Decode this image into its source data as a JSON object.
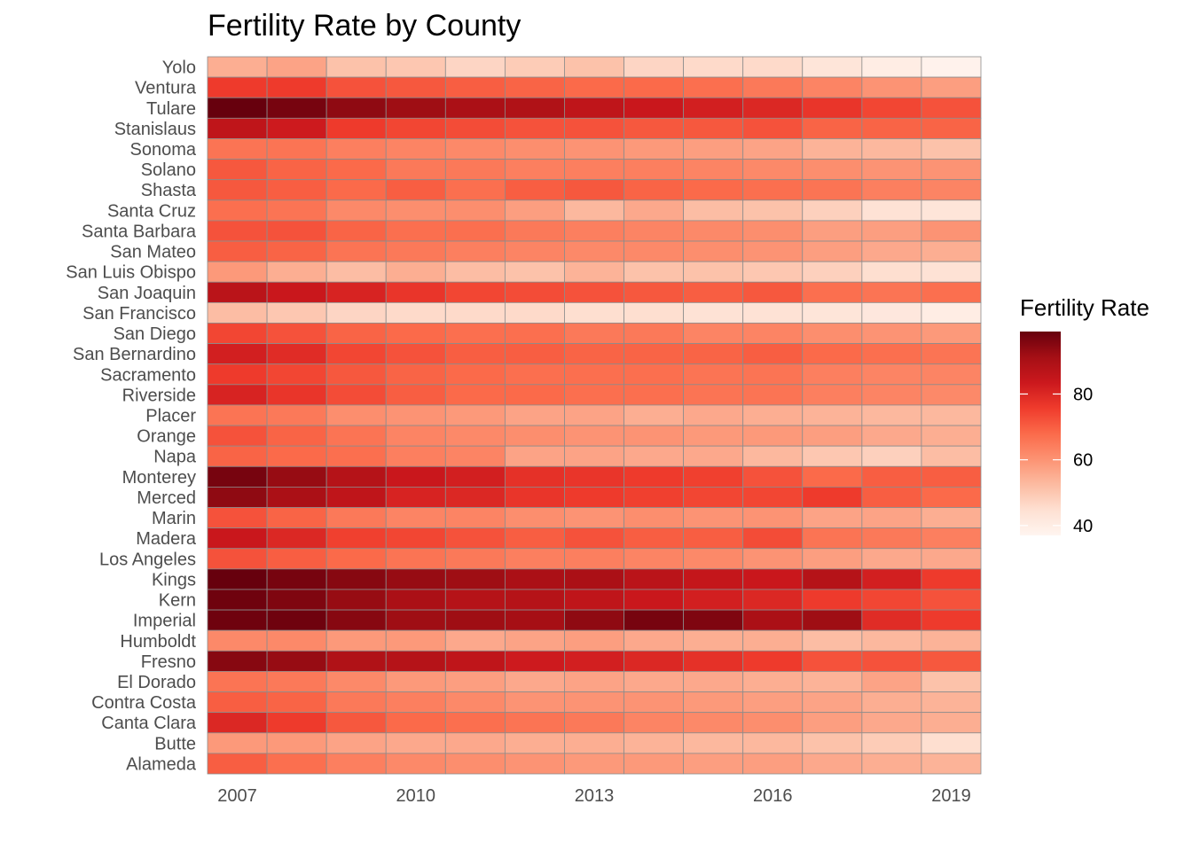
{
  "chart_data": {
    "type": "heatmap",
    "title": "Fertility Rate by County",
    "xlabel": "",
    "ylabel": "",
    "legend_title": "Fertility Rate",
    "legend_position": "right",
    "legend_ticks": [
      40,
      60,
      80
    ],
    "color_scale": {
      "min": 37,
      "max": 99,
      "low_color": "#fff5f0",
      "high_color": "#67000d"
    },
    "x": [
      2007,
      2008,
      2009,
      2010,
      2011,
      2012,
      2013,
      2014,
      2015,
      2016,
      2017,
      2018,
      2019
    ],
    "x_tick_labels": [
      "2007",
      "2010",
      "2013",
      "2016",
      "2019"
    ],
    "counties": [
      "Yolo",
      "Ventura",
      "Tulare",
      "Stanislaus",
      "Sonoma",
      "Solano",
      "Shasta",
      "Santa Cruz",
      "Santa Barbara",
      "San Mateo",
      "San Luis Obispo",
      "San Joaquin",
      "San Francisco",
      "San Diego",
      "San Bernardino",
      "Sacramento",
      "Riverside",
      "Placer",
      "Orange",
      "Napa",
      "Monterey",
      "Merced",
      "Marin",
      "Madera",
      "Los Angeles",
      "Kings",
      "Kern",
      "Imperial",
      "Humboldt",
      "Fresno",
      "El Dorado",
      "Contra Costa",
      "Canta Clara",
      "Butte",
      "Alameda"
    ],
    "values": [
      [
        55,
        57,
        51,
        50,
        47,
        49,
        51,
        47,
        46,
        46,
        43,
        40,
        38
      ],
      [
        76,
        76,
        72,
        71,
        70,
        69,
        68,
        68,
        67,
        65,
        63,
        60,
        58
      ],
      [
        99,
        97,
        94,
        92,
        90,
        89,
        86,
        84,
        82,
        80,
        77,
        74,
        72
      ],
      [
        86,
        83,
        76,
        74,
        73,
        72,
        72,
        71,
        71,
        72,
        69,
        69,
        69
      ],
      [
        66,
        66,
        64,
        63,
        62,
        61,
        60,
        59,
        58,
        57,
        54,
        53,
        51
      ],
      [
        71,
        69,
        68,
        65,
        65,
        64,
        64,
        64,
        63,
        62,
        61,
        60,
        60
      ],
      [
        71,
        70,
        68,
        70,
        67,
        70,
        71,
        69,
        68,
        67,
        66,
        64,
        63
      ],
      [
        67,
        66,
        62,
        61,
        61,
        58,
        53,
        56,
        52,
        51,
        48,
        44,
        43
      ],
      [
        72,
        72,
        69,
        67,
        67,
        65,
        64,
        63,
        62,
        61,
        58,
        58,
        60
      ],
      [
        70,
        69,
        66,
        65,
        64,
        63,
        62,
        62,
        61,
        60,
        58,
        56,
        55
      ],
      [
        59,
        55,
        52,
        55,
        52,
        51,
        54,
        51,
        51,
        50,
        48,
        45,
        44
      ],
      [
        87,
        84,
        81,
        77,
        74,
        73,
        72,
        71,
        70,
        71,
        67,
        66,
        67
      ],
      [
        52,
        50,
        47,
        46,
        46,
        46,
        45,
        45,
        44,
        44,
        43,
        42,
        40
      ],
      [
        74,
        72,
        69,
        68,
        67,
        67,
        65,
        65,
        63,
        63,
        61,
        60,
        59
      ],
      [
        82,
        79,
        74,
        72,
        70,
        70,
        69,
        69,
        69,
        70,
        68,
        67,
        66
      ],
      [
        76,
        74,
        71,
        69,
        68,
        67,
        67,
        67,
        66,
        66,
        64,
        63,
        63
      ],
      [
        81,
        77,
        73,
        70,
        68,
        68,
        67,
        67,
        66,
        66,
        64,
        63,
        62
      ],
      [
        66,
        65,
        61,
        60,
        59,
        57,
        57,
        55,
        56,
        55,
        54,
        53,
        53
      ],
      [
        72,
        69,
        66,
        63,
        62,
        61,
        60,
        60,
        59,
        59,
        58,
        56,
        55
      ],
      [
        69,
        68,
        67,
        64,
        63,
        57,
        57,
        56,
        56,
        53,
        50,
        48,
        52
      ],
      [
        97,
        93,
        88,
        84,
        82,
        78,
        77,
        76,
        75,
        72,
        68,
        70,
        70
      ],
      [
        94,
        90,
        86,
        81,
        80,
        77,
        76,
        75,
        74,
        74,
        76,
        70,
        68
      ],
      [
        72,
        69,
        65,
        63,
        63,
        61,
        60,
        61,
        60,
        60,
        57,
        57,
        55
      ],
      [
        84,
        80,
        75,
        74,
        72,
        70,
        72,
        70,
        70,
        73,
        66,
        65,
        64
      ],
      [
        72,
        70,
        68,
        66,
        65,
        64,
        64,
        63,
        62,
        60,
        58,
        56,
        56
      ],
      [
        99,
        97,
        95,
        93,
        92,
        90,
        90,
        87,
        85,
        84,
        88,
        82,
        76
      ],
      [
        98,
        96,
        93,
        90,
        88,
        88,
        86,
        84,
        82,
        80,
        76,
        74,
        72
      ],
      [
        98,
        98,
        95,
        92,
        92,
        91,
        94,
        97,
        96,
        90,
        92,
        79,
        76
      ],
      [
        62,
        62,
        59,
        59,
        56,
        57,
        58,
        56,
        55,
        55,
        52,
        53,
        54
      ],
      [
        95,
        93,
        89,
        88,
        86,
        83,
        82,
        80,
        78,
        76,
        72,
        72,
        71
      ],
      [
        66,
        65,
        62,
        59,
        58,
        56,
        57,
        56,
        56,
        55,
        54,
        57,
        51
      ],
      [
        70,
        69,
        65,
        64,
        62,
        60,
        60,
        60,
        59,
        58,
        57,
        55,
        54
      ],
      [
        80,
        76,
        71,
        68,
        67,
        66,
        65,
        63,
        62,
        61,
        58,
        56,
        55
      ],
      [
        59,
        59,
        57,
        56,
        56,
        55,
        55,
        54,
        53,
        53,
        51,
        49,
        45
      ],
      [
        70,
        67,
        64,
        62,
        61,
        60,
        59,
        59,
        58,
        58,
        56,
        55,
        54
      ]
    ]
  }
}
